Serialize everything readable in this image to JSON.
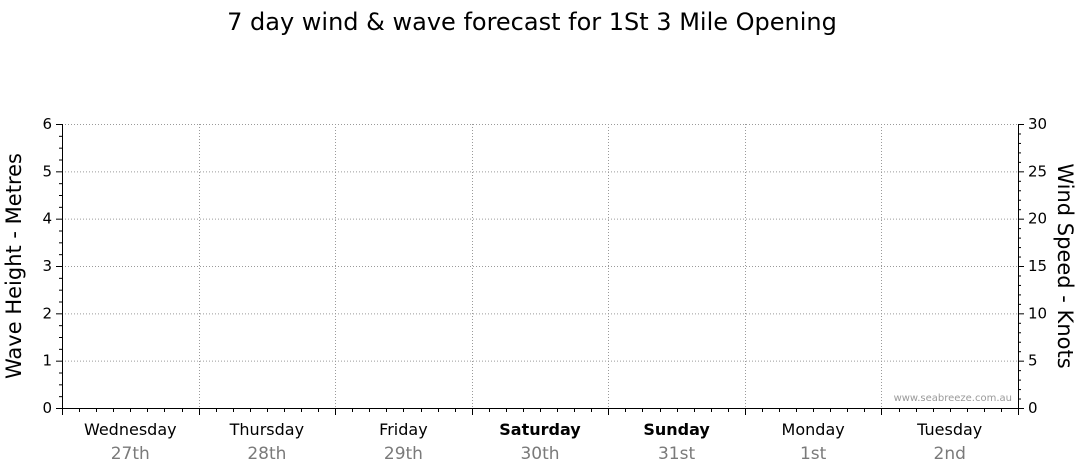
{
  "chart_data": {
    "type": "line",
    "title": "7 day wind & wave forecast for 1St 3 Mile Opening",
    "ylabel_left": "Wave Height - Metres",
    "ylabel_right": "Wind Speed - Knots",
    "ylim_left": [
      0,
      6
    ],
    "ylim_right": [
      0,
      30
    ],
    "yticks_left": [
      "0",
      "1",
      "2",
      "3",
      "4",
      "5",
      "6"
    ],
    "yticks_right": [
      "0",
      "5",
      "10",
      "15",
      "20",
      "25",
      "30"
    ],
    "grid": true,
    "days": [
      {
        "name": "Wednesday",
        "date": "27th",
        "bold": false
      },
      {
        "name": "Thursday",
        "date": "28th",
        "bold": false
      },
      {
        "name": "Friday",
        "date": "29th",
        "bold": false
      },
      {
        "name": "Saturday",
        "date": "30th",
        "bold": true
      },
      {
        "name": "Sunday",
        "date": "31st",
        "bold": true
      },
      {
        "name": "Monday",
        "date": "1st",
        "bold": false
      },
      {
        "name": "Tuesday",
        "date": "2nd",
        "bold": false
      }
    ],
    "series": []
  },
  "watermark": "www.seabreeze.com.au"
}
